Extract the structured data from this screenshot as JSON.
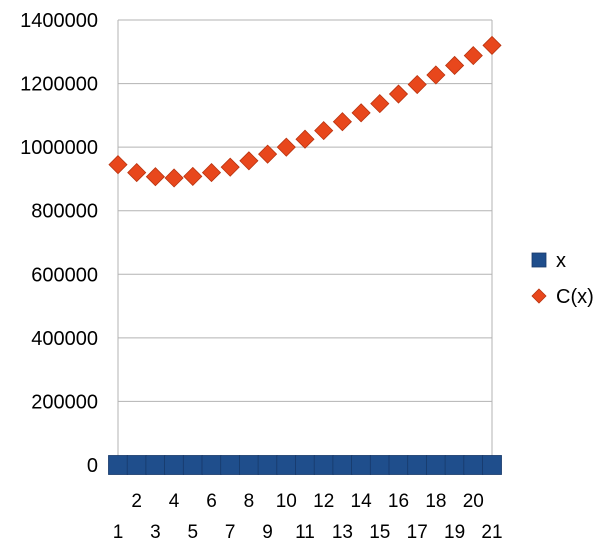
{
  "chart_data": {
    "type": "scatter",
    "x": [
      1,
      2,
      3,
      4,
      5,
      6,
      7,
      8,
      9,
      10,
      11,
      12,
      13,
      14,
      15,
      16,
      17,
      18,
      19,
      20,
      21
    ],
    "categories": [
      "1",
      "2",
      "3",
      "4",
      "5",
      "6",
      "7",
      "8",
      "9",
      "10",
      "11",
      "12",
      "13",
      "14",
      "15",
      "16",
      "17",
      "18",
      "19",
      "20",
      "21"
    ],
    "series": [
      {
        "name": "x",
        "marker": "square",
        "color": "#1f4e8c",
        "values": [
          1,
          2,
          3,
          4,
          5,
          6,
          7,
          8,
          9,
          10,
          11,
          12,
          13,
          14,
          15,
          16,
          17,
          18,
          19,
          20,
          21
        ]
      },
      {
        "name": "C(x)",
        "marker": "diamond",
        "color": "#e8471c",
        "values": [
          945000,
          920000,
          907000,
          903000,
          908000,
          920000,
          937000,
          957000,
          978000,
          1000000,
          1025000,
          1052000,
          1080000,
          1108000,
          1137000,
          1167000,
          1197000,
          1227000,
          1257000,
          1288000,
          1320000
        ]
      }
    ],
    "yticks": [
      "0",
      "200000",
      "400000",
      "600000",
      "800000",
      "1000000",
      "1200000",
      "1400000"
    ],
    "ylim": [
      0,
      1400000
    ],
    "xlim": [
      1,
      21
    ],
    "grid": true,
    "legend_position": "right",
    "title": "",
    "xlabel": "",
    "ylabel": ""
  }
}
